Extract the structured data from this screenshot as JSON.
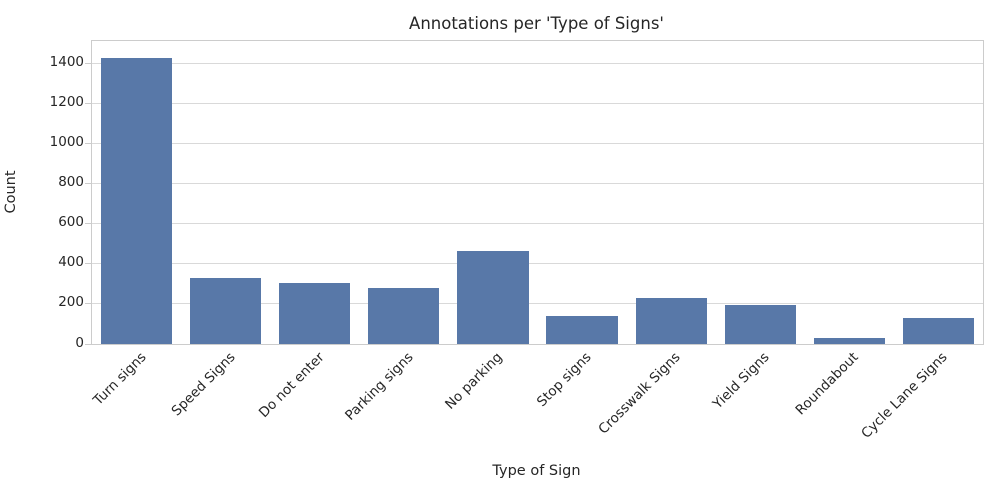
{
  "chart_data": {
    "type": "bar",
    "title": "Annotations per 'Type of Signs'",
    "xlabel": "Type of Sign",
    "ylabel": "Count",
    "categories": [
      "Turn signs",
      "Speed Signs",
      "Do not enter",
      "Parking signs",
      "No parking",
      "Stop signs",
      "Crosswalk Signs",
      "Yield Signs",
      "Roundabout",
      "Cycle Lane Signs"
    ],
    "values": [
      1430,
      330,
      305,
      280,
      465,
      140,
      230,
      195,
      30,
      130
    ],
    "yticks": [
      0,
      200,
      400,
      600,
      800,
      1000,
      1200,
      1400
    ],
    "ylim": [
      0,
      1513
    ],
    "grid": "horizontal",
    "legend": false,
    "bar_color": "#5878a8",
    "grid_color": "#d9d9d9",
    "spine_color": "#cccccc",
    "text_color": "#262626",
    "background": "#ffffff"
  }
}
